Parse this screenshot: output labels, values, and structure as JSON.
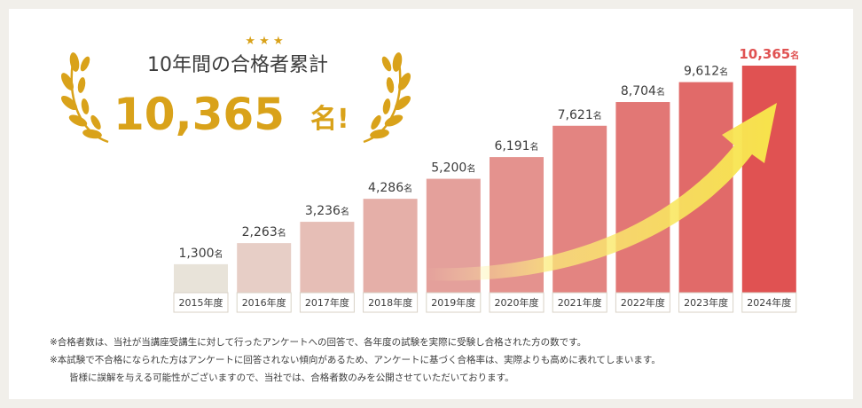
{
  "headline": {
    "label": "10年間の合格者累計",
    "count": "10,365",
    "unit_suffix": "名!",
    "stars": "★ ★ ★"
  },
  "colors": {
    "headline_gold": "#d9a21a",
    "bar_start": "#e8e3d9",
    "bar_end": "#e05252",
    "highlight_label": "#e05252",
    "arrow": "#f7e34a"
  },
  "chart_data": {
    "type": "bar",
    "categories": [
      "2015年度",
      "2016年度",
      "2017年度",
      "2018年度",
      "2019年度",
      "2020年度",
      "2021年度",
      "2022年度",
      "2023年度",
      "2024年度"
    ],
    "values": [
      1300,
      2263,
      3236,
      4286,
      5200,
      6191,
      7621,
      8704,
      9612,
      10365
    ],
    "value_labels": [
      "1,300",
      "2,263",
      "3,236",
      "4,286",
      "5,200",
      "6,191",
      "7,621",
      "8,704",
      "9,612",
      "10,365"
    ],
    "value_unit": "名",
    "highlight_index": 9,
    "ylim": [
      0,
      11000
    ],
    "grid": false,
    "title": "",
    "xlabel": "",
    "ylabel": ""
  },
  "notes": [
    "※合格者数は、当社が当講座受講生に対して行ったアンケートへの回答で、各年度の試験を実際に受験し合格された方の数です。",
    "※本試験で不合格になられた方はアンケートに回答されない傾向があるため、アンケートに基づく合格率は、実際よりも高めに表れてしまいます。",
    "皆様に誤解を与える可能性がございますので、当社では、合格者数のみを公開させていただいております。"
  ]
}
